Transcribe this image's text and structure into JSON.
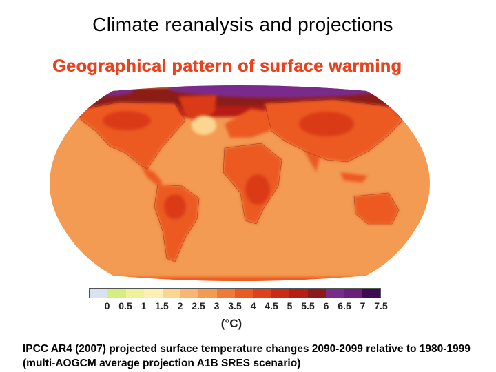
{
  "slide": {
    "title": "Climate reanalysis and projections"
  },
  "map": {
    "title": "Geographical pattern of surface warming",
    "colors": {
      "ocean": "#f39a53",
      "land": "#ec5a24",
      "land_hot": "#da3a18",
      "arctic_red": "#b81f14",
      "arctic_dark": "#8b1a18",
      "arctic_purple": "#7a2a8c",
      "cool_spot": "#fcd590",
      "title": "#e8421f"
    }
  },
  "colorbar": {
    "units": "(°C)",
    "ticks": [
      "0",
      "0.5",
      "1",
      "1.5",
      "2",
      "2.5",
      "3",
      "3.5",
      "4",
      "4.5",
      "5",
      "5.5",
      "6",
      "6.5",
      "7",
      "7.5"
    ],
    "colors": [
      "#d9e2f2",
      "#d5ee82",
      "#eef39a",
      "#fcf0b4",
      "#fcd590",
      "#f9b572",
      "#f39a53",
      "#ef7b3b",
      "#ec5a24",
      "#e0401c",
      "#cc2a16",
      "#b81f14",
      "#8b1a18",
      "#7a2a8c",
      "#6b1e7a",
      "#3e0a52"
    ]
  },
  "caption": {
    "text": "IPCC AR4 (2007) projected surface temperature changes 2090-2099 relative to 1980-1999 (multi-AOGCM average projection A1B SRES scenario)"
  }
}
